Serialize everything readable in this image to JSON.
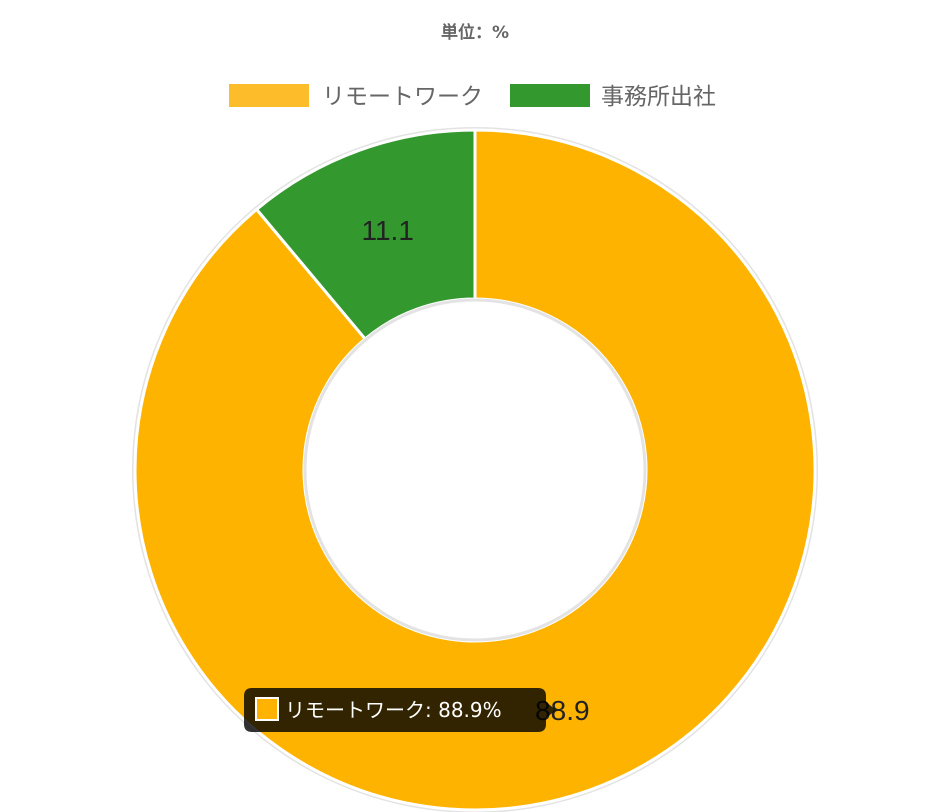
{
  "chart_data": {
    "type": "pie",
    "title": "単位：%",
    "legend_position": "top",
    "categories": [
      "リモートワーク",
      "事務所出社"
    ],
    "values": [
      88.9,
      11.1
    ],
    "colors": [
      "#fdb300",
      "#33992f"
    ],
    "legend_colors": [
      "#fdbd2b",
      "#33992f"
    ],
    "data_labels": [
      "88.9",
      "11.1"
    ],
    "tooltip": {
      "label": "リモートワーク: 88.9%",
      "color": "#fdb300"
    }
  }
}
